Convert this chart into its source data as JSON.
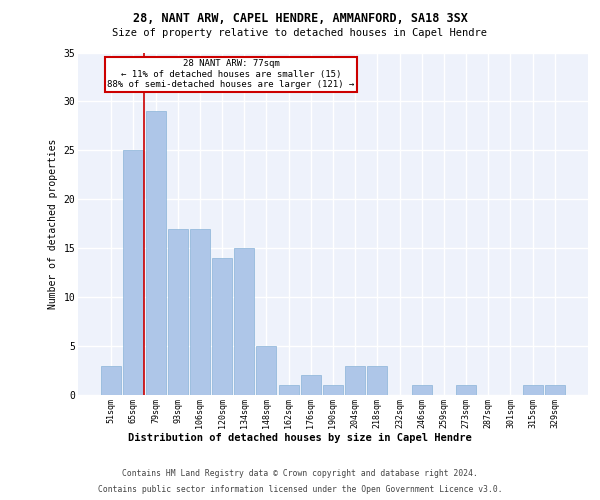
{
  "title1": "28, NANT ARW, CAPEL HENDRE, AMMANFORD, SA18 3SX",
  "title2": "Size of property relative to detached houses in Capel Hendre",
  "xlabel": "Distribution of detached houses by size in Capel Hendre",
  "ylabel": "Number of detached properties",
  "categories": [
    "51sqm",
    "65sqm",
    "79sqm",
    "93sqm",
    "106sqm",
    "120sqm",
    "134sqm",
    "148sqm",
    "162sqm",
    "176sqm",
    "190sqm",
    "204sqm",
    "218sqm",
    "232sqm",
    "246sqm",
    "259sqm",
    "273sqm",
    "287sqm",
    "301sqm",
    "315sqm",
    "329sqm"
  ],
  "values": [
    3,
    25,
    29,
    17,
    17,
    14,
    15,
    5,
    1,
    2,
    1,
    3,
    3,
    0,
    1,
    0,
    1,
    0,
    0,
    1,
    1
  ],
  "bar_color": "#aec6e8",
  "bar_edge_color": "#8ab4d8",
  "annotation_text_line1": "28 NANT ARW: 77sqm",
  "annotation_text_line2": "← 11% of detached houses are smaller (15)",
  "annotation_text_line3": "88% of semi-detached houses are larger (121) →",
  "annotation_box_color": "#ffffff",
  "annotation_box_edge_color": "#cc0000",
  "vline_color": "#cc0000",
  "background_color": "#eef2fb",
  "grid_color": "#ffffff",
  "footer1": "Contains HM Land Registry data © Crown copyright and database right 2024.",
  "footer2": "Contains public sector information licensed under the Open Government Licence v3.0.",
  "ylim": [
    0,
    35
  ],
  "yticks": [
    0,
    5,
    10,
    15,
    20,
    25,
    30,
    35
  ]
}
